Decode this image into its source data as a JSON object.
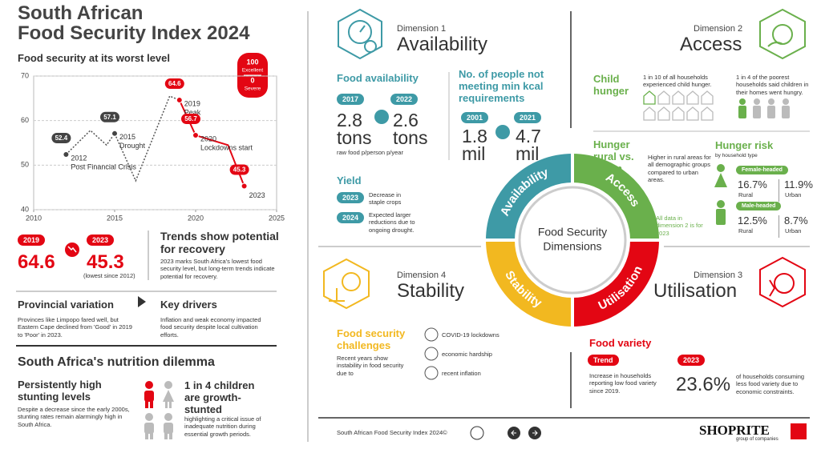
{
  "header": {
    "title_line1": "South African",
    "title_line2": "Food Security Index 2024",
    "subtitle": "Food security at its worst level"
  },
  "chart_data": {
    "type": "line",
    "xlim": [
      2010,
      2025
    ],
    "ylim": [
      40,
      70
    ],
    "xticks": [
      2010,
      2015,
      2020,
      2025
    ],
    "yticks": [
      40,
      50,
      60,
      70
    ],
    "grid": true,
    "legend": {
      "top_value": "100",
      "top_label": "Excellent",
      "bottom_value": "0",
      "bottom_label": "Severe"
    },
    "series": [
      {
        "color": "#555555",
        "dashed": true,
        "x": [
          2012,
          2013.5,
          2014.5,
          2015,
          2016.3,
          2018.4,
          2019
        ],
        "values": [
          52.4,
          57.8,
          54.5,
          57.1,
          46.5,
          65.5,
          64.6
        ]
      },
      {
        "color": "#e30613",
        "dashed": false,
        "x": [
          2019,
          2020,
          2022,
          2023
        ],
        "values": [
          64.6,
          56.7,
          54.5,
          45.3
        ]
      }
    ],
    "annotations": [
      {
        "year": "2012",
        "text": "Post Financial Crisis"
      },
      {
        "year": "2015",
        "text": "Drought"
      },
      {
        "year": "2019",
        "text": "Peak"
      },
      {
        "year": "2020",
        "text": "Lockdowns start"
      },
      {
        "year": "2023"
      }
    ]
  },
  "trends": {
    "items": [
      {
        "year": "2019",
        "value": "64.6"
      },
      {
        "year": "2023",
        "value": "45.3",
        "note": "(lowest since 2012)"
      }
    ],
    "heading": "Trends show potential for recovery",
    "text": "2023 marks South Africa's lowest food security level, but long-term trends indicate potential for recovery."
  },
  "provincial": {
    "heading": "Provincial variation",
    "text": "Provinces like Limpopo fared well, but Eastern Cape declined from 'Good' in 2019 to 'Poor' in 2023."
  },
  "drivers": {
    "heading": "Key drivers",
    "text": "Inflation and weak economy impacted food security despite local cultivation efforts."
  },
  "nutrition": {
    "heading": "South Africa's nutrition dilemma",
    "stunting": {
      "heading": "Persistently high stunting levels",
      "text": "Despite a decrease since the early 2000s, stunting rates remain alarmingly high in South Africa."
    },
    "children": {
      "heading": "1 in 4 children are growth-stunted",
      "text": "highlighting a critical issue of inadequate nutrition during essential growth periods."
    }
  },
  "availability": {
    "dimension": "Dimension 1",
    "title": "Availability",
    "food": {
      "heading": "Food availability",
      "items": [
        {
          "year": "2017",
          "value": "2.8",
          "unit": "tons"
        },
        {
          "year": "2022",
          "value": "2.6",
          "unit": "tons"
        }
      ],
      "note": "raw food p/person p/year"
    },
    "kcal": {
      "heading": "No. of people not meeting min kcal requirements",
      "items": [
        {
          "year": "2001",
          "value": "1.8",
          "unit": "mil"
        },
        {
          "year": "2021",
          "value": "4.7",
          "unit": "mil"
        }
      ]
    },
    "yield": {
      "heading": "Yield",
      "items": [
        {
          "year": "2023",
          "text": "Decrease in staple crops"
        },
        {
          "year": "2024",
          "text": "Expected larger reductions due to ongoing drought."
        }
      ]
    }
  },
  "access": {
    "dimension": "Dimension 2",
    "title": "Access",
    "child_hunger": {
      "heading": "Child hunger",
      "all_households": "1 in 10 of all households experienced child hunger.",
      "poorest": "1 in 4 of the poorest households said children in their homes went hungry."
    },
    "rural_urban": {
      "heading": "Hunger rural vs. urban",
      "text": "Higher in rural areas for all demographic groups compared to urban areas.",
      "note": "All data in dimension 2 is for 2023"
    },
    "risk": {
      "heading": "Hunger risk",
      "subheading": "by household type",
      "groups": [
        {
          "label": "Female-headed",
          "rural": "16.7%",
          "rural_label": "Rural",
          "urban": "11.9%",
          "urban_label": "Urban"
        },
        {
          "label": "Male-headed",
          "rural": "12.5%",
          "rural_label": "Rural",
          "urban": "8.7%",
          "urban_label": "Urban"
        }
      ]
    }
  },
  "donut": {
    "segments": [
      "Availability",
      "Access",
      "Utilisation",
      "Stability"
    ],
    "center_line1": "Food Security",
    "center_line2": "Dimensions"
  },
  "stability": {
    "dimension": "Dimension 4",
    "title": "Stability",
    "heading": "Food security challenges",
    "text": "Recent years show instability in food security due to",
    "items": [
      "COVID-19 lockdowns",
      "economic hardship",
      "recent inflation"
    ]
  },
  "utilisation": {
    "dimension": "Dimension 3",
    "title": "Utilisation",
    "heading": "Food variety",
    "trend": {
      "label": "Trend",
      "text": "Increase in households reporting low food variety since 2019."
    },
    "current": {
      "year": "2023",
      "value": "23.6%",
      "text": "of households consuming less food variety due to economic constraints."
    }
  },
  "footer": {
    "text": "South African Food Security Index 2024©",
    "logo": "SHOPRITE",
    "logo_sub": "group of companies"
  }
}
